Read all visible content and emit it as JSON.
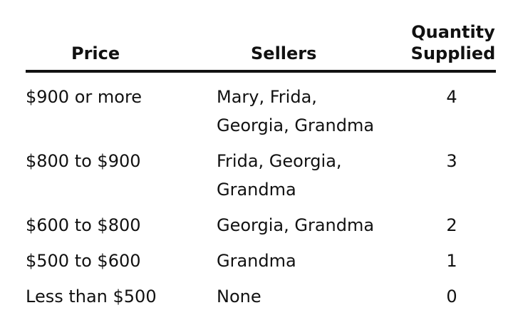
{
  "table": {
    "headers": {
      "price": "Price",
      "sellers": "Sellers",
      "quantity_line1": "Quantity",
      "quantity_line2": "Supplied"
    },
    "rows": [
      {
        "price": "$900 or more",
        "sellers": [
          "Mary, Frida,",
          "Georgia, Grandma"
        ],
        "quantity": "4"
      },
      {
        "price": "$800 to $900",
        "sellers": [
          "Frida, Georgia,",
          "Grandma"
        ],
        "quantity": "3"
      },
      {
        "price": "$600 to $800",
        "sellers": [
          "Georgia, Grandma"
        ],
        "quantity": "2"
      },
      {
        "price": "$500 to $600",
        "sellers": [
          "Grandma"
        ],
        "quantity": "1"
      },
      {
        "price": "Less than $500",
        "sellers": [
          "None"
        ],
        "quantity": "0"
      }
    ]
  }
}
